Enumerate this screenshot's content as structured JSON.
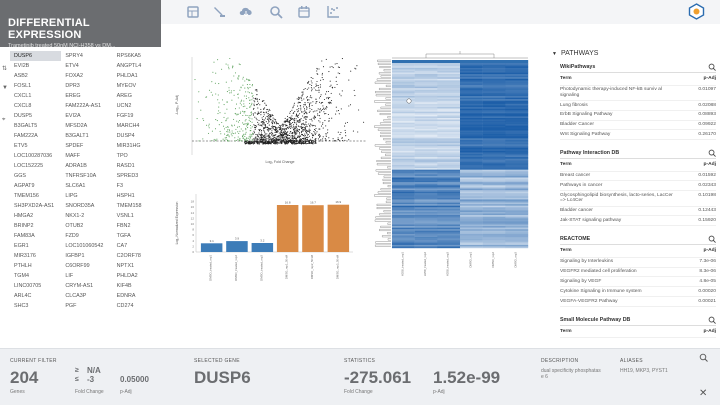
{
  "header": {
    "title": "DIFFERENTIAL EXPRESSION",
    "subtitle": "Trametinib treated 50nM NCI-H358 vs DM..."
  },
  "toolbar": {
    "icons": [
      "table-icon",
      "filter-icon",
      "cloud-download-icon",
      "zoom-icon",
      "calendar-icon",
      "scatter-plot-icon"
    ]
  },
  "genes": [
    "DUSP6",
    "SPRY4",
    "RPS6KA5",
    "EVI2B",
    "ETV4",
    "ANGPTL4",
    "ASB2",
    "FOXA2",
    "PHLDA1",
    "FOSL1",
    "DPR3",
    "MYEOV",
    "CXCL1",
    "EREG",
    "AREG",
    "CXCL8",
    "FAM222A-AS1",
    "UCN2",
    "DUSP5",
    "EVI2A",
    "FGF19",
    "B3GALT5",
    "MFSD2A",
    "MARCH4",
    "FAM222A",
    "B3GALT1",
    "DUSP4",
    "ETV5",
    "SPDEF",
    "MIR31HG",
    "LOC100287036",
    "MAFF",
    "TPO",
    "LOC152225",
    "ADRA1B",
    "RASD1",
    "GGS",
    "TNFRSF10A",
    "SPRED3",
    "AGPAT9",
    "SLC6A1",
    "F3",
    "TMEM156",
    "LIPG",
    "HSPH1",
    "SH3PXD2A-AS1",
    "SNORD35A",
    "TMEM158",
    "HMGA2",
    "NKX1-2",
    "VSNL1",
    "BRINP2",
    "OTUB2",
    "FBN2",
    "FAM83A",
    "FZD9",
    "TGFA",
    "EGR1",
    "LOC101060542",
    "CA7",
    "MIR3176",
    "IGFBP1",
    "C2ORF78",
    "PTHLH",
    "C6ORF99",
    "NPTX1",
    "TGM4",
    "LIF",
    "PHLDA2",
    "LINC00705",
    "CRYM-AS1",
    "KIF4B",
    "ARL4C",
    "CLCA3P",
    "EDNRA",
    "SHC3",
    "PGF",
    "CD274"
  ],
  "volcano": {
    "xlabel": "Log₂ Fold Change",
    "ylabel": "-Log₁₀ P-Adj"
  },
  "chart_data": {
    "type": "bar",
    "categories": [
      "DMSO_treated_rep1",
      "DMSO_treated_rep2",
      "DMSO_treated_rep3",
      "DMSO_rep1_50nM",
      "DMSO_rep2_50nM",
      "DMSO_rep3_50nM"
    ],
    "values": [
      3.1,
      3.9,
      3.2,
      16.8,
      16.7,
      16.9
    ],
    "value_labels": [
      "3.1",
      "3.9",
      "3.2",
      "16.8",
      "16.7",
      "16.9"
    ],
    "colors": [
      "#3c7cb8",
      "#3c7cb8",
      "#3c7cb8",
      "#d98a45",
      "#d98a45",
      "#d98a45"
    ],
    "ylabel": "Log₂ Normalized Expression",
    "ylim": [
      0,
      20
    ],
    "yticks": [
      "0",
      "2",
      "4",
      "6",
      "8",
      "10",
      "12",
      "14",
      "16",
      "18"
    ],
    "grid": false
  },
  "heatmap": {
    "columns": [
      "H358_treated_rep1",
      "H358_treated_rep2",
      "H358_treated_rep3",
      "DMSO_rep1",
      "DMSO_rep2",
      "DMSO_rep3"
    ]
  },
  "pathways": {
    "title": "PATHWAYS",
    "col_term": "Term",
    "col_p": "p-Adj",
    "sections": [
      {
        "name": "WikiPathways",
        "rows": [
          {
            "term": "Photodynamic therapy-induced NF-kB surviv al signaling",
            "p": "0.01097"
          },
          {
            "term": "Lung fibrosis",
            "p": "0.02088"
          },
          {
            "term": "ErbB Signaling Pathway",
            "p": "0.08893"
          },
          {
            "term": "Bladder Cancer",
            "p": "0.09922"
          },
          {
            "term": "Wnt Signaling Pathway",
            "p": "0.26170"
          }
        ]
      },
      {
        "name": "Pathway Interaction DB",
        "rows": [
          {
            "term": "Breast cancer",
            "p": "0.01592"
          },
          {
            "term": "Pathways in cancer",
            "p": "0.02343"
          },
          {
            "term": "Glycosphingolipid biosynthesis, lacto-series, LacCer => Lc4Cer",
            "p": "0.10198"
          },
          {
            "term": "Bladder cancer",
            "p": "0.12443"
          },
          {
            "term": "Jak-STAT signaling pathway",
            "p": "0.15920"
          }
        ]
      },
      {
        "name": "REACTOME",
        "rows": [
          {
            "term": "Signaling by Interleukins",
            "p": "7.3e-06"
          },
          {
            "term": "VEGFR2 mediated cell proliferation",
            "p": "8.3e-06"
          },
          {
            "term": "Signaling by VEGF",
            "p": "4.8e-05"
          },
          {
            "term": "Cytokine Signaling in Immune system",
            "p": "0.00020"
          },
          {
            "term": "VEGFA-VEGFR2 Pathway",
            "p": "0.00021"
          }
        ]
      },
      {
        "name": "Small Molecule Pathway DB",
        "rows": []
      }
    ]
  },
  "footer": {
    "filter_label": "CURRENT FILTER",
    "gene_count": "204",
    "genes_label": "Genes",
    "fc_ge": "≥",
    "fc_le": "≤",
    "fc_na": "N/A",
    "fc_neg": "-3",
    "fc_label": "Fold Change",
    "padj_value": "0.05000",
    "padj_label": "p-Adj",
    "selected_label": "SELECTED GENE",
    "selected_gene": "DUSP6",
    "stats_label": "STATISTICS",
    "stat_fc": "-275.061",
    "stat_fc_label": "Fold Change",
    "stat_p": "1.52e-99",
    "stat_p_label": "p-Adj",
    "desc_label": "DESCRIPTION",
    "desc_text": "dual specificity phosphatas e 6",
    "alias_label": "ALIASES",
    "alias_text": "HH19, MKP3, PYST1",
    "close": "✕"
  }
}
